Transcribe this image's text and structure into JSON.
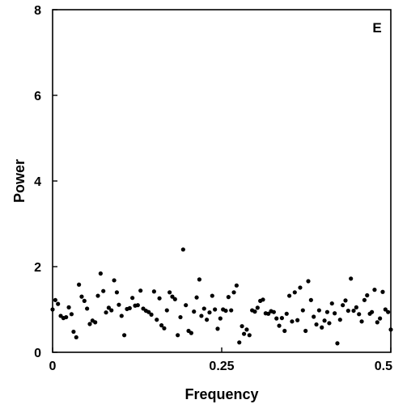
{
  "chart_data": {
    "type": "scatter",
    "title": "",
    "panel_label": "E",
    "xlabel": "Frequency",
    "ylabel": "Power",
    "xlim": [
      0,
      0.5
    ],
    "ylim": [
      0,
      8
    ],
    "xticks": [
      0,
      0.25,
      0.5
    ],
    "xtick_labels": [
      "0",
      "0.25",
      "0.5"
    ],
    "yticks": [
      0,
      2,
      4,
      6,
      8
    ],
    "ytick_labels": [
      "0",
      "2",
      "4",
      "6",
      "8"
    ],
    "grid": false,
    "legend": false,
    "marker_color": "#000000",
    "series": [
      {
        "x": [
          0.0,
          0.004,
          0.008,
          0.012,
          0.016,
          0.02,
          0.024,
          0.028,
          0.031,
          0.035,
          0.039,
          0.043,
          0.047,
          0.051,
          0.055,
          0.059,
          0.063,
          0.067,
          0.071,
          0.075,
          0.079,
          0.083,
          0.087,
          0.091,
          0.095,
          0.098,
          0.102,
          0.106,
          0.11,
          0.114,
          0.118,
          0.122,
          0.126,
          0.13,
          0.134,
          0.138,
          0.142,
          0.146,
          0.15,
          0.154,
          0.158,
          0.161,
          0.165,
          0.169,
          0.173,
          0.177,
          0.181,
          0.185,
          0.189,
          0.193,
          0.197,
          0.201,
          0.205,
          0.209,
          0.213,
          0.217,
          0.22,
          0.224,
          0.228,
          0.232,
          0.236,
          0.24,
          0.244,
          0.248,
          0.252,
          0.256,
          0.26,
          0.264,
          0.268,
          0.272,
          0.276,
          0.28,
          0.283,
          0.287,
          0.291,
          0.295,
          0.299,
          0.303,
          0.307,
          0.311,
          0.315,
          0.319,
          0.323,
          0.327,
          0.331,
          0.335,
          0.339,
          0.343,
          0.346,
          0.35,
          0.354,
          0.358,
          0.362,
          0.366,
          0.37,
          0.374,
          0.378,
          0.382,
          0.386,
          0.39,
          0.394,
          0.398,
          0.402,
          0.406,
          0.409,
          0.413,
          0.417,
          0.421,
          0.425,
          0.429,
          0.433,
          0.437,
          0.441,
          0.445,
          0.449,
          0.453,
          0.457,
          0.461,
          0.465,
          0.469,
          0.472,
          0.476,
          0.48,
          0.484,
          0.488,
          0.492,
          0.496,
          0.5
        ],
        "y": [
          1.0,
          1.22,
          1.13,
          0.85,
          0.8,
          0.82,
          1.05,
          0.89,
          0.48,
          0.35,
          1.58,
          1.3,
          1.2,
          1.02,
          0.66,
          0.74,
          0.7,
          1.32,
          1.84,
          1.43,
          0.93,
          1.04,
          0.98,
          1.68,
          1.4,
          1.11,
          0.85,
          0.4,
          1.01,
          1.03,
          1.27,
          1.09,
          1.1,
          1.44,
          1.02,
          0.97,
          0.94,
          0.88,
          1.42,
          0.76,
          1.26,
          0.63,
          0.56,
          0.98,
          1.4,
          1.3,
          1.24,
          0.4,
          0.82,
          2.4,
          1.1,
          0.5,
          0.45,
          0.95,
          1.28,
          1.7,
          0.85,
          1.02,
          0.76,
          0.93,
          1.32,
          1.0,
          0.55,
          0.79,
          1.0,
          0.97,
          1.29,
          0.98,
          1.4,
          1.56,
          0.23,
          0.61,
          0.43,
          0.53,
          0.4,
          0.98,
          0.95,
          1.04,
          1.2,
          1.23,
          0.91,
          0.9,
          0.96,
          0.94,
          0.79,
          0.62,
          0.8,
          0.5,
          0.9,
          1.32,
          0.72,
          1.4,
          0.75,
          1.51,
          0.98,
          0.5,
          1.66,
          1.22,
          0.83,
          0.65,
          0.98,
          0.58,
          0.74,
          0.94,
          0.68,
          1.14,
          0.91,
          0.21,
          0.76,
          1.1,
          1.21,
          0.97,
          1.72,
          0.97,
          1.05,
          0.89,
          0.72,
          1.22,
          1.33,
          0.9,
          0.94,
          1.46,
          0.7,
          0.79,
          1.41,
          1.0,
          0.94,
          0.53
        ]
      }
    ]
  }
}
